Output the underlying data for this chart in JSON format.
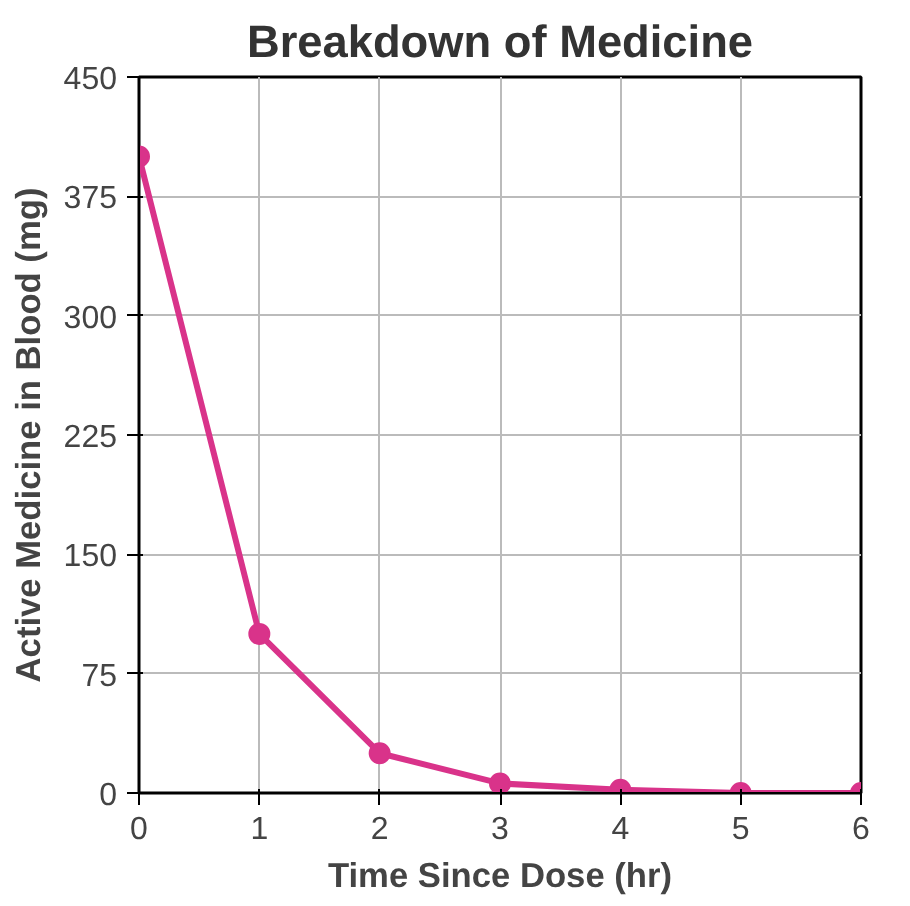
{
  "chart_data": {
    "type": "line",
    "title": "Breakdown of Medicine",
    "xlabel": "Time Since Dose (hr)",
    "ylabel": "Active Medicine in Blood (mg)",
    "x": [
      0,
      1,
      2,
      3,
      4,
      5,
      6
    ],
    "series": [
      {
        "color": "#d9338a",
        "values": [
          400,
          100,
          25,
          6,
          2,
          0,
          0
        ]
      }
    ],
    "xlim": [
      0,
      6
    ],
    "ylim": [
      0,
      450
    ],
    "xticks": [
      0,
      1,
      2,
      3,
      4,
      5,
      6
    ],
    "yticks": [
      0,
      75,
      150,
      225,
      300,
      375,
      450
    ],
    "grid": true,
    "marker": "circle",
    "line_style": "solid"
  }
}
